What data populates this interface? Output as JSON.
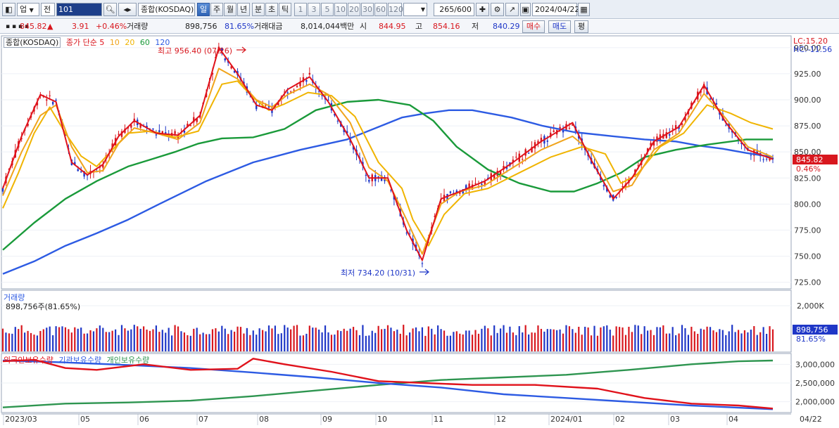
{
  "toolbar": {
    "market_select": "업",
    "market_select_2": "전",
    "code_value": "101",
    "index_name": "종합(KOSDAQ)",
    "periods": [
      "일",
      "주",
      "월",
      "년",
      "분",
      "초",
      "틱"
    ],
    "selected_period": "일",
    "intervals": [
      "1",
      "3",
      "5",
      "10",
      "20",
      "30",
      "60",
      "120"
    ],
    "count": "265/600",
    "date": "2024/04/22"
  },
  "info": {
    "price": "845.82",
    "change": "3.91",
    "change_rate": "+0.46%",
    "volume_label": "거래량",
    "volume": "898,756",
    "volume_rate": "81.65%",
    "amount_label": "거래대금",
    "amount": "8,014,044백만",
    "open_label": "시",
    "open": "844.95",
    "high_label": "고",
    "high": "854.16",
    "low_label": "저",
    "low": "840.29",
    "buy_label": "매수",
    "sell_label": "매도",
    "avg_label": "평"
  },
  "price_panel": {
    "legend_name": "종합(KOSDAQ)",
    "ma_label": "종가 단순",
    "ma_periods": [
      "5",
      "10",
      "20",
      "60",
      "120"
    ],
    "lc": "LC:15.20",
    "hc": "HC:-11.56",
    "y_ticks": [
      "950.00",
      "925.00",
      "900.00",
      "875.00",
      "850.00",
      "825.00",
      "800.00",
      "775.00",
      "750.00",
      "725.00"
    ],
    "current_price": "845.82",
    "current_rate": "0.46%",
    "high_annotation": "최고 956.40 (07/26)",
    "low_annotation": "최저 734.20 (10/31)"
  },
  "volume_panel": {
    "title": "거래량",
    "value_text": "898,756주(81.65%)",
    "y_tick": "2,000K",
    "current": "898,756",
    "current_rate": "81.65%"
  },
  "holding_panel": {
    "foreign": "외국인보유수량",
    "institution": "기관보유수량",
    "individual": "개인보유수량",
    "y_ticks": [
      "3,000,000",
      "2,500,000",
      "2,000,000"
    ]
  },
  "x_axis": [
    "2023/03",
    "05",
    "06",
    "07",
    "08",
    "09",
    "10",
    "11",
    "12",
    "2024/01",
    "02",
    "03",
    "04"
  ],
  "x_axis_end": "04/22",
  "colors": {
    "up": "#d8171e",
    "down": "#1f37c7",
    "ma5": "#e0121b",
    "ma10": "#f0a41c",
    "ma20": "#f0b400",
    "ma60": "#1a9a3a",
    "ma120": "#2d5be3",
    "foreign": "#e0121b",
    "institution": "#2d5be3",
    "individual": "#2e9550"
  },
  "chart_data": {
    "type": "candlestick",
    "ylim": [
      720,
      960
    ],
    "ma120_points": [
      [
        0,
        733
      ],
      [
        20,
        745
      ],
      [
        40,
        760
      ],
      [
        60,
        772
      ],
      [
        80,
        785
      ],
      [
        100,
        800
      ],
      [
        130,
        822
      ],
      [
        160,
        840
      ],
      [
        190,
        852
      ],
      [
        220,
        862
      ],
      [
        240,
        874
      ],
      [
        255,
        883
      ],
      [
        270,
        887
      ],
      [
        285,
        890
      ],
      [
        300,
        890
      ],
      [
        325,
        883
      ],
      [
        345,
        875
      ],
      [
        365,
        869
      ],
      [
        390,
        865
      ],
      [
        410,
        862
      ],
      [
        430,
        860
      ],
      [
        445,
        856
      ],
      [
        460,
        853
      ],
      [
        475,
        849
      ],
      [
        492,
        845
      ]
    ],
    "ma60_points": [
      [
        0,
        756
      ],
      [
        20,
        782
      ],
      [
        40,
        805
      ],
      [
        60,
        822
      ],
      [
        80,
        836
      ],
      [
        95,
        843
      ],
      [
        110,
        850
      ],
      [
        125,
        858
      ],
      [
        140,
        863
      ],
      [
        160,
        864
      ],
      [
        180,
        872
      ],
      [
        200,
        890
      ],
      [
        220,
        898
      ],
      [
        240,
        900
      ],
      [
        260,
        895
      ],
      [
        275,
        880
      ],
      [
        290,
        855
      ],
      [
        310,
        833
      ],
      [
        330,
        820
      ],
      [
        350,
        812
      ],
      [
        365,
        812
      ],
      [
        380,
        820
      ],
      [
        395,
        830
      ],
      [
        410,
        845
      ],
      [
        430,
        852
      ],
      [
        450,
        857
      ],
      [
        475,
        862
      ],
      [
        492,
        862
      ]
    ],
    "ma20_points": [
      [
        0,
        796
      ],
      [
        10,
        830
      ],
      [
        20,
        868
      ],
      [
        30,
        893
      ],
      [
        40,
        868
      ],
      [
        50,
        846
      ],
      [
        60,
        836
      ],
      [
        70,
        852
      ],
      [
        80,
        868
      ],
      [
        95,
        870
      ],
      [
        110,
        864
      ],
      [
        125,
        870
      ],
      [
        140,
        915
      ],
      [
        150,
        918
      ],
      [
        160,
        902
      ],
      [
        170,
        890
      ],
      [
        180,
        896
      ],
      [
        195,
        907
      ],
      [
        210,
        904
      ],
      [
        225,
        884
      ],
      [
        240,
        840
      ],
      [
        255,
        815
      ],
      [
        262,
        785
      ],
      [
        272,
        760
      ],
      [
        282,
        790
      ],
      [
        295,
        810
      ],
      [
        310,
        815
      ],
      [
        330,
        830
      ],
      [
        350,
        845
      ],
      [
        370,
        855
      ],
      [
        385,
        848
      ],
      [
        395,
        820
      ],
      [
        405,
        828
      ],
      [
        420,
        855
      ],
      [
        435,
        868
      ],
      [
        450,
        895
      ],
      [
        465,
        887
      ],
      [
        478,
        878
      ],
      [
        492,
        872
      ]
    ],
    "ma10_points": [
      [
        0,
        808
      ],
      [
        12,
        850
      ],
      [
        24,
        885
      ],
      [
        34,
        895
      ],
      [
        44,
        855
      ],
      [
        54,
        830
      ],
      [
        64,
        832
      ],
      [
        74,
        858
      ],
      [
        84,
        873
      ],
      [
        98,
        868
      ],
      [
        112,
        862
      ],
      [
        126,
        878
      ],
      [
        138,
        930
      ],
      [
        150,
        920
      ],
      [
        162,
        900
      ],
      [
        172,
        893
      ],
      [
        182,
        905
      ],
      [
        196,
        915
      ],
      [
        208,
        905
      ],
      [
        222,
        878
      ],
      [
        234,
        835
      ],
      [
        246,
        822
      ],
      [
        258,
        785
      ],
      [
        268,
        752
      ],
      [
        280,
        800
      ],
      [
        292,
        812
      ],
      [
        308,
        818
      ],
      [
        326,
        835
      ],
      [
        344,
        852
      ],
      [
        364,
        865
      ],
      [
        376,
        850
      ],
      [
        390,
        812
      ],
      [
        402,
        818
      ],
      [
        416,
        852
      ],
      [
        432,
        868
      ],
      [
        448,
        906
      ],
      [
        462,
        882
      ],
      [
        476,
        855
      ],
      [
        492,
        845
      ]
    ],
    "ma5_points": [
      [
        0,
        815
      ],
      [
        12,
        865
      ],
      [
        24,
        905
      ],
      [
        34,
        898
      ],
      [
        44,
        840
      ],
      [
        54,
        828
      ],
      [
        64,
        838
      ],
      [
        74,
        865
      ],
      [
        84,
        880
      ],
      [
        98,
        868
      ],
      [
        112,
        866
      ],
      [
        126,
        885
      ],
      [
        138,
        950
      ],
      [
        150,
        925
      ],
      [
        162,
        895
      ],
      [
        172,
        890
      ],
      [
        182,
        910
      ],
      [
        196,
        922
      ],
      [
        208,
        898
      ],
      [
        222,
        862
      ],
      [
        234,
        825
      ],
      [
        246,
        825
      ],
      [
        258,
        775
      ],
      [
        268,
        746
      ],
      [
        280,
        805
      ],
      [
        292,
        812
      ],
      [
        308,
        822
      ],
      [
        326,
        840
      ],
      [
        344,
        860
      ],
      [
        364,
        878
      ],
      [
        376,
        842
      ],
      [
        390,
        805
      ],
      [
        402,
        825
      ],
      [
        416,
        860
      ],
      [
        432,
        874
      ],
      [
        448,
        914
      ],
      [
        462,
        878
      ],
      [
        476,
        852
      ],
      [
        492,
        843
      ]
    ],
    "foreign_points": [
      [
        0,
        3080000
      ],
      [
        20,
        3120000
      ],
      [
        40,
        2900000
      ],
      [
        60,
        2850000
      ],
      [
        90,
        3000000
      ],
      [
        120,
        2850000
      ],
      [
        150,
        2880000
      ],
      [
        160,
        3150000
      ],
      [
        180,
        3000000
      ],
      [
        210,
        2800000
      ],
      [
        240,
        2550000
      ],
      [
        270,
        2500000
      ],
      [
        300,
        2450000
      ],
      [
        340,
        2450000
      ],
      [
        380,
        2350000
      ],
      [
        410,
        2100000
      ],
      [
        440,
        1950000
      ],
      [
        470,
        1900000
      ],
      [
        492,
        1820000
      ]
    ],
    "institution_points": [
      [
        0,
        3100000
      ],
      [
        40,
        3050000
      ],
      [
        80,
        2980000
      ],
      [
        120,
        2900000
      ],
      [
        160,
        2780000
      ],
      [
        200,
        2650000
      ],
      [
        240,
        2500000
      ],
      [
        280,
        2380000
      ],
      [
        320,
        2200000
      ],
      [
        360,
        2100000
      ],
      [
        400,
        2000000
      ],
      [
        440,
        1900000
      ],
      [
        492,
        1800000
      ]
    ],
    "individual_points": [
      [
        0,
        1850000
      ],
      [
        40,
        1950000
      ],
      [
        80,
        1980000
      ],
      [
        120,
        2030000
      ],
      [
        160,
        2150000
      ],
      [
        200,
        2300000
      ],
      [
        240,
        2450000
      ],
      [
        280,
        2580000
      ],
      [
        320,
        2650000
      ],
      [
        360,
        2720000
      ],
      [
        400,
        2850000
      ],
      [
        440,
        3000000
      ],
      [
        470,
        3080000
      ],
      [
        492,
        3100000
      ]
    ]
  }
}
